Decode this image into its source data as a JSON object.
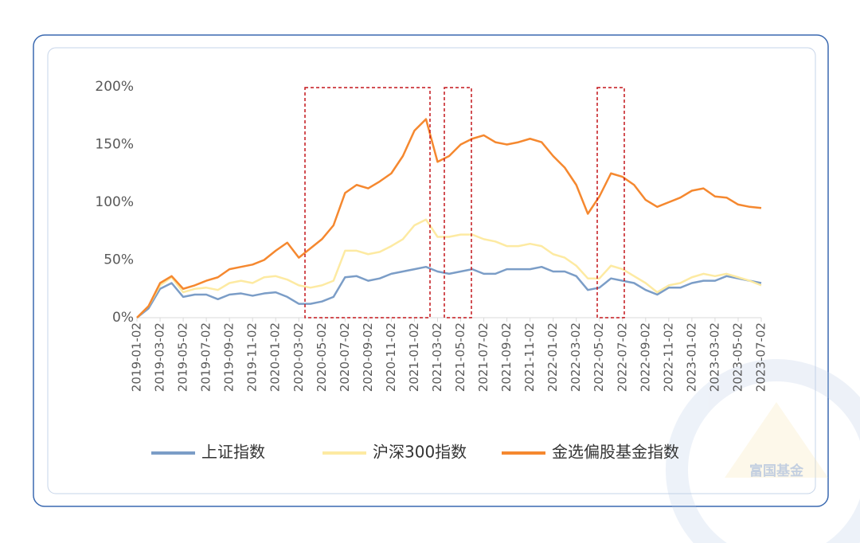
{
  "watermark": "富国基金",
  "chart_data": {
    "type": "line",
    "x": [
      "2019-01-02",
      null,
      "2019-03-02",
      null,
      "2019-05-02",
      null,
      "2019-07-02",
      null,
      "2019-09-02",
      null,
      "2019-11-02",
      null,
      "2020-01-02",
      null,
      "2020-03-02",
      null,
      "2020-05-02",
      null,
      "2020-07-02",
      null,
      "2020-09-02",
      null,
      "2020-11-02",
      null,
      "2021-01-02",
      null,
      "2021-03-02",
      null,
      "2021-05-02",
      null,
      "2021-07-02",
      null,
      "2021-09-02",
      null,
      "2021-11-02",
      null,
      "2022-01-02",
      null,
      "2022-03-02",
      null,
      "2022-05-02",
      null,
      "2022-07-02",
      null,
      "2022-09-02",
      null,
      "2022-11-02",
      null,
      "2023-01-02",
      null,
      "2023-03-02",
      null,
      "2023-05-02",
      null,
      "2023-07-02"
    ],
    "series": [
      {
        "name": "上证指数",
        "color": "#7b9dc7",
        "values": [
          0,
          8,
          25,
          30,
          18,
          20,
          20,
          16,
          20,
          21,
          19,
          21,
          22,
          18,
          12,
          12,
          14,
          18,
          35,
          36,
          32,
          34,
          38,
          40,
          42,
          44,
          40,
          38,
          40,
          42,
          38,
          38,
          42,
          42,
          42,
          44,
          40,
          40,
          36,
          24,
          26,
          34,
          32,
          30,
          24,
          20,
          26,
          26,
          30,
          32,
          32,
          36,
          34,
          32,
          30
        ]
      },
      {
        "name": "沪深300指数",
        "color": "#fdeaa2",
        "values": [
          0,
          10,
          28,
          35,
          22,
          25,
          26,
          24,
          30,
          32,
          30,
          35,
          36,
          33,
          28,
          26,
          28,
          32,
          58,
          58,
          55,
          57,
          62,
          68,
          80,
          85,
          70,
          70,
          72,
          72,
          68,
          66,
          62,
          62,
          64,
          62,
          55,
          52,
          45,
          34,
          34,
          45,
          42,
          36,
          30,
          22,
          28,
          30,
          35,
          38,
          36,
          38,
          35,
          32,
          28
        ]
      },
      {
        "name": "金选偏股基金指数",
        "color": "#f5882f",
        "values": [
          0,
          10,
          30,
          36,
          25,
          28,
          32,
          35,
          42,
          44,
          46,
          50,
          58,
          65,
          52,
          60,
          68,
          80,
          108,
          115,
          112,
          118,
          125,
          140,
          162,
          172,
          135,
          140,
          150,
          155,
          158,
          152,
          150,
          152,
          155,
          152,
          140,
          130,
          115,
          90,
          105,
          125,
          122,
          115,
          102,
          96,
          100,
          104,
          110,
          112,
          105,
          104,
          98,
          96,
          95
        ]
      }
    ],
    "ylim": [
      0,
      200
    ],
    "yticks": [
      {
        "value": 0,
        "label": "0%"
      },
      {
        "value": 50,
        "label": "50%"
      },
      {
        "value": 100,
        "label": "100%"
      },
      {
        "value": 150,
        "label": "150%"
      },
      {
        "value": 200,
        "label": "200%"
      }
    ]
  }
}
